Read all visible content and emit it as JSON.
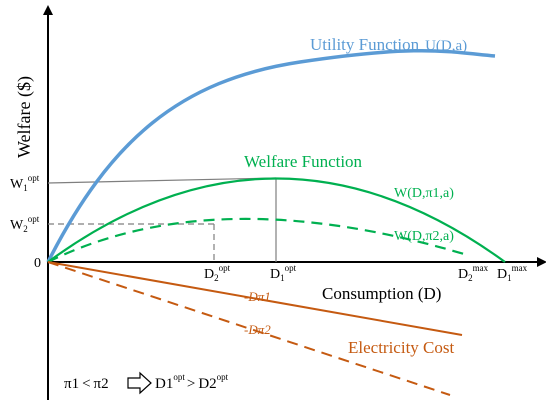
{
  "axes": {
    "y_label": "Welfare ($)",
    "x_label": "Consumption (D)",
    "origin": "0"
  },
  "ticks": {
    "w1": {
      "base": "W",
      "sub": "1",
      "sup": "opt"
    },
    "w2": {
      "base": "W",
      "sub": "2",
      "sup": "opt"
    },
    "d2": {
      "base": "D",
      "sub": "2",
      "sup": "opt"
    },
    "d1": {
      "base": "D",
      "sub": "1",
      "sup": "opt"
    },
    "d2max": {
      "base": "D",
      "sub": "2",
      "sup": "max"
    },
    "d1max": {
      "base": "D",
      "sub": "1",
      "sup": "max"
    }
  },
  "curves": {
    "utility": {
      "label": "Utility Function",
      "expr": "U(D,a)",
      "color": "#5b9bd5"
    },
    "welfare": {
      "label": "Welfare Function",
      "color": "#00b050"
    },
    "w1": {
      "label": "W(D,π1,a)"
    },
    "w2": {
      "label": "W(D,π2,a)"
    },
    "cost": {
      "label": "Electricity Cost",
      "color": "#c55a11"
    },
    "cost1": {
      "label": "-Dπ1"
    },
    "cost2": {
      "label": "-Dπ2"
    }
  },
  "note": {
    "pi1": "π1",
    "lt": "<",
    "pi2": "π2",
    "d1": "D1",
    "opt1": "opt",
    "gt": ">",
    "d2": "D2",
    "opt2": "opt"
  }
}
